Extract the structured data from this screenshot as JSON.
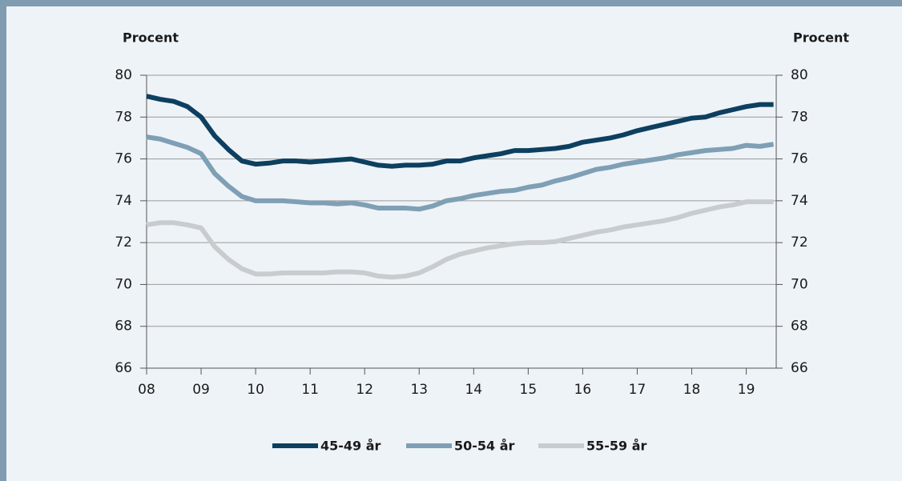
{
  "chart_data": {
    "type": "line",
    "y_label": "Procent",
    "y2_label": "Procent",
    "x": [
      8,
      8.25,
      8.5,
      8.75,
      9,
      9.25,
      9.5,
      9.75,
      10,
      10.25,
      10.5,
      10.75,
      11,
      11.25,
      11.5,
      11.75,
      12,
      12.25,
      12.5,
      12.75,
      13,
      13.25,
      13.5,
      13.75,
      14,
      14.25,
      14.5,
      14.75,
      15,
      15.25,
      15.5,
      15.75,
      16,
      16.25,
      16.5,
      16.75,
      17,
      17.25,
      17.5,
      17.75,
      18,
      18.25,
      18.5,
      18.75,
      19,
      19.25,
      19.5
    ],
    "xlim": [
      8,
      19.55
    ],
    "xticks": [
      {
        "value": 8,
        "label": "08"
      },
      {
        "value": 9,
        "label": "09"
      },
      10,
      11,
      12,
      13,
      14,
      15,
      16,
      17,
      18,
      19
    ],
    "ylim": [
      66,
      80
    ],
    "yticks": [
      66,
      68,
      70,
      72,
      74,
      76,
      78,
      80
    ],
    "y2lim": [
      66,
      80
    ],
    "y2ticks": [
      66,
      68,
      70,
      72,
      74,
      76,
      78,
      80
    ],
    "grid": true,
    "legend": "bottom",
    "series": [
      {
        "name": "45-49 år",
        "color": "#0d3f5f",
        "values": [
          79.0,
          78.85,
          78.75,
          78.5,
          78.0,
          77.1,
          76.45,
          75.9,
          75.75,
          75.8,
          75.9,
          75.9,
          75.85,
          75.9,
          75.95,
          76.0,
          75.85,
          75.7,
          75.65,
          75.7,
          75.7,
          75.75,
          75.9,
          75.9,
          76.05,
          76.15,
          76.25,
          76.4,
          76.4,
          76.45,
          76.5,
          76.6,
          76.8,
          76.9,
          77.0,
          77.15,
          77.35,
          77.5,
          77.65,
          77.8,
          77.95,
          78.0,
          78.2,
          78.35,
          78.5,
          78.6,
          78.6
        ]
      },
      {
        "name": "50-54 år",
        "color": "#7f9fb4",
        "values": [
          77.05,
          76.95,
          76.75,
          76.55,
          76.25,
          75.3,
          74.7,
          74.2,
          74.0,
          74.0,
          74.0,
          73.95,
          73.9,
          73.9,
          73.85,
          73.9,
          73.8,
          73.65,
          73.65,
          73.65,
          73.6,
          73.75,
          74.0,
          74.1,
          74.25,
          74.35,
          74.45,
          74.5,
          74.65,
          74.75,
          74.95,
          75.1,
          75.3,
          75.5,
          75.6,
          75.75,
          75.85,
          75.95,
          76.05,
          76.2,
          76.3,
          76.4,
          76.45,
          76.5,
          76.65,
          76.6,
          76.7
        ]
      },
      {
        "name": "55-59 år",
        "color": "#c9cccf",
        "values": [
          72.85,
          72.95,
          72.95,
          72.85,
          72.7,
          71.8,
          71.2,
          70.75,
          70.5,
          70.5,
          70.55,
          70.55,
          70.55,
          70.55,
          70.6,
          70.6,
          70.55,
          70.4,
          70.35,
          70.4,
          70.55,
          70.85,
          71.2,
          71.45,
          71.6,
          71.75,
          71.85,
          71.95,
          72.0,
          72.0,
          72.05,
          72.2,
          72.35,
          72.5,
          72.6,
          72.75,
          72.85,
          72.95,
          73.05,
          73.2,
          73.4,
          73.55,
          73.7,
          73.8,
          73.95,
          73.95,
          73.95
        ]
      }
    ]
  }
}
